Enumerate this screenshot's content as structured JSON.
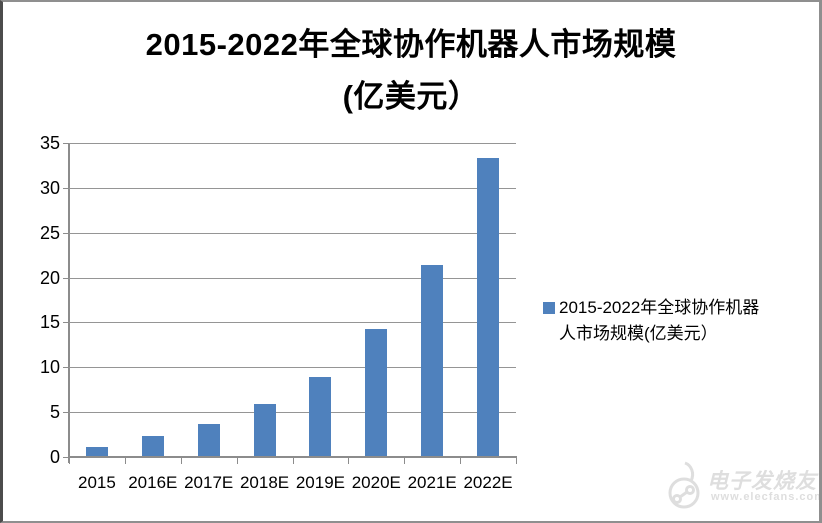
{
  "title": {
    "line1": "2015-2022年全球协作机器人市场规模",
    "line2": "(亿美元）"
  },
  "legend": {
    "label": "2015-2022年全球协作机器人市场规模(亿美元）"
  },
  "watermark": {
    "name": "电子发烧友",
    "url": "www.elecfans.com"
  },
  "colors": {
    "bar": "#4f81bd",
    "grid": "#959595",
    "axis": "#8c8c8c",
    "watermark": "#dedede",
    "border_dark": "#4c4c4c",
    "border_light": "#8f8f8f"
  },
  "chart_data": {
    "type": "bar",
    "title": "2015-2022年全球协作机器人市场规模(亿美元）",
    "categories": [
      "2015",
      "2016E",
      "2017E",
      "2018E",
      "2019E",
      "2020E",
      "2021E",
      "2022E"
    ],
    "values": [
      1.1,
      2.3,
      3.7,
      5.9,
      8.9,
      14.3,
      21.4,
      33.3
    ],
    "xlabel": "",
    "ylabel": "",
    "ylim": [
      0,
      35
    ],
    "yticks": [
      0,
      5,
      10,
      15,
      20,
      25,
      30,
      35
    ],
    "grid": true,
    "legend_position": "right",
    "legend_entries": [
      "2015-2022年全球协作机器人市场规模(亿美元）"
    ]
  }
}
